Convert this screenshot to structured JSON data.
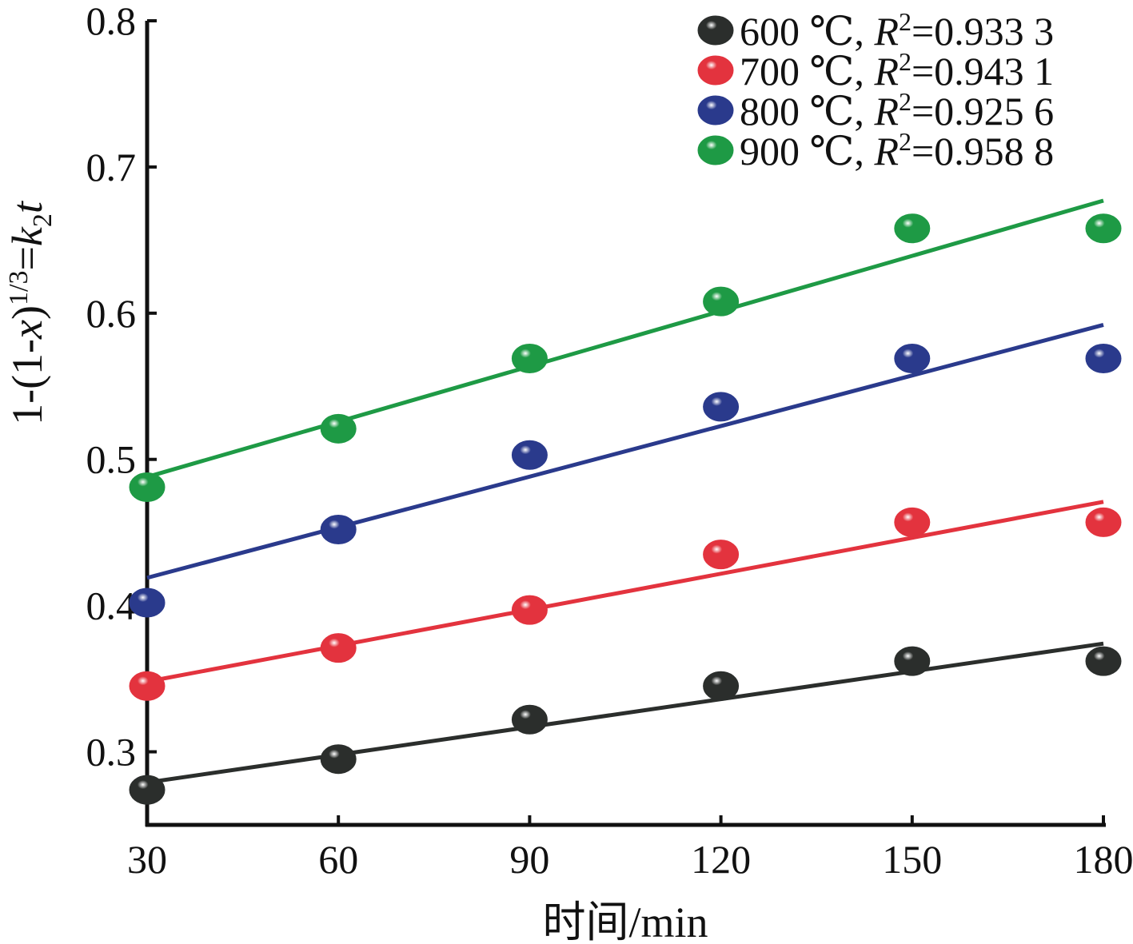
{
  "chart_data": {
    "type": "scatter",
    "title": "",
    "xlabel": "时间/min",
    "ylabel": {
      "prefix": "1-(1-",
      "var": "x",
      "close": ")",
      "exp": "1/3",
      "eq": "=",
      "k": "k",
      "sub": "2",
      "t": "t"
    },
    "xlim": [
      30,
      180
    ],
    "ylim": [
      0.25,
      0.8
    ],
    "x_ticks": [
      30,
      60,
      90,
      120,
      150,
      180
    ],
    "y_ticks": [
      0.3,
      0.4,
      0.5,
      0.6,
      0.7,
      0.8
    ],
    "x_tick_labels": [
      "30",
      "60",
      "90",
      "120",
      "150",
      "180"
    ],
    "y_tick_labels": [
      "0.3",
      "0.4",
      "0.5",
      "0.6",
      "0.7",
      "0.8"
    ],
    "legend_position": "top-right",
    "grid": false,
    "x": [
      30,
      60,
      90,
      120,
      150,
      180
    ],
    "series": [
      {
        "name": "600 ℃",
        "legend_temp": "600 ℃,",
        "legend_r2": "=0.933 3",
        "color": "#2b2e2c",
        "values": [
          0.274,
          0.295,
          0.322,
          0.345,
          0.362,
          0.362
        ],
        "fit": [
          0.279,
          0.374
        ]
      },
      {
        "name": "700 ℃",
        "legend_temp": "700 ℃,",
        "legend_r2": "=0.943 1",
        "color": "#e3333e",
        "values": [
          0.345,
          0.371,
          0.397,
          0.435,
          0.457,
          0.457
        ],
        "fit": [
          0.348,
          0.471
        ]
      },
      {
        "name": "800 ℃",
        "legend_temp": "800 ℃,",
        "legend_r2": "=0.925 6",
        "color": "#2a3a8c",
        "values": [
          0.402,
          0.452,
          0.503,
          0.536,
          0.569,
          0.569
        ],
        "fit": [
          0.419,
          0.592
        ]
      },
      {
        "name": "900 ℃",
        "legend_temp": "900 ℃,",
        "legend_r2": "=0.958 8",
        "color": "#1e9a45",
        "values": [
          0.481,
          0.521,
          0.569,
          0.608,
          0.658,
          0.658
        ],
        "fit": [
          0.488,
          0.677
        ]
      }
    ],
    "legend_r_symbol": "R",
    "legend_r_sup": "2"
  }
}
